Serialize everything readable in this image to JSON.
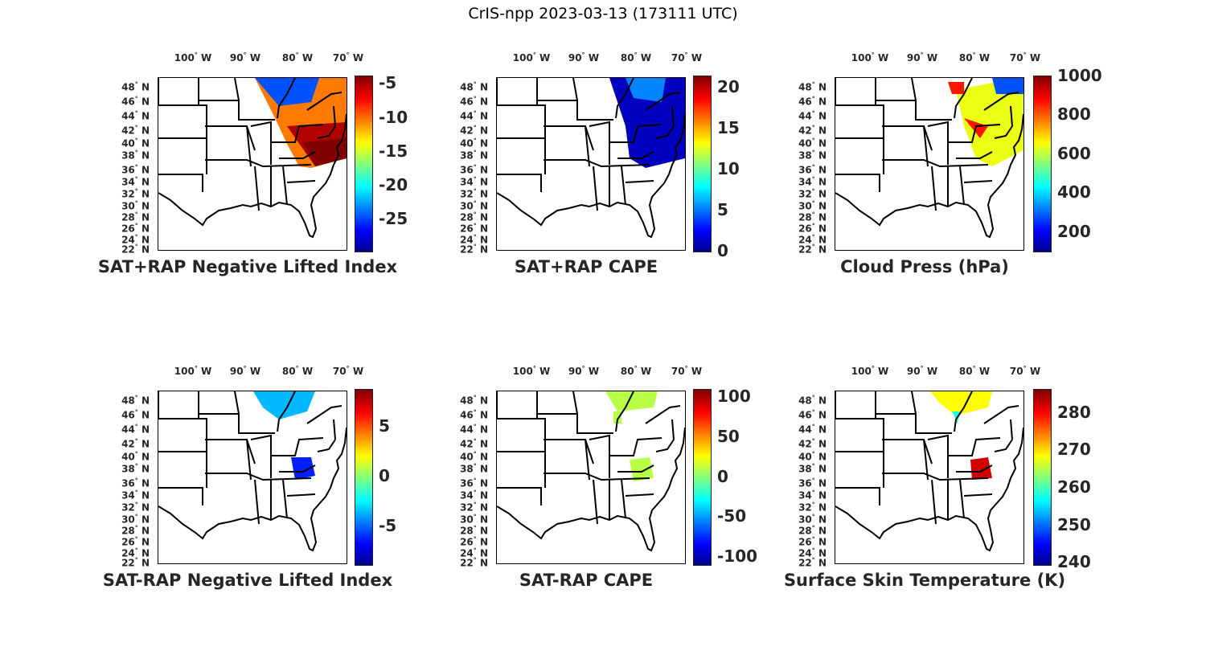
{
  "title": "CrIS-npp 2023-03-13 (173111 UTC)",
  "lat_labels": [
    "48",
    "46",
    "44",
    "42",
    "40",
    "38",
    "36",
    "34",
    "32",
    "30",
    "28",
    "26",
    "24",
    "22"
  ],
  "lat_suffix": "N",
  "lon_labels": [
    "100",
    "90",
    "80",
    "70"
  ],
  "lon_suffix": "W",
  "colormap": "jet",
  "panels": [
    {
      "title": "SAT+RAP Negative Lifted Index",
      "clim": [
        -29.7,
        -3.9
      ],
      "ticks": [
        "-5",
        "-10",
        "-15",
        "-20",
        "-25"
      ],
      "tickvals": [
        -5,
        -10,
        -15,
        -20,
        -25
      ]
    },
    {
      "title": "SAT+RAP CAPE",
      "clim": [
        0,
        21.4
      ],
      "ticks": [
        "20",
        "15",
        "10",
        "5",
        "0"
      ],
      "tickvals": [
        20,
        15,
        10,
        5,
        0
      ]
    },
    {
      "title": "Cloud Press (hPa)",
      "clim": [
        100,
        1000
      ],
      "ticks": [
        "1000",
        "800",
        "600",
        "400",
        "200"
      ],
      "tickvals": [
        1000,
        800,
        600,
        400,
        200
      ]
    },
    {
      "title": "SAT-RAP Negative Lifted Index",
      "clim": [
        -8.9,
        8.7
      ],
      "ticks": [
        "5",
        "0",
        "-5"
      ],
      "tickvals": [
        5,
        0,
        -5
      ]
    },
    {
      "title": "SAT-RAP CAPE",
      "clim": [
        -110,
        109
      ],
      "ticks": [
        "100",
        "50",
        "0",
        "-50",
        "-100"
      ],
      "tickvals": [
        100,
        50,
        0,
        -50,
        -100
      ]
    },
    {
      "title": "Surface Skin Temperature (K)",
      "clim": [
        239.4,
        286.2
      ],
      "ticks": [
        "280",
        "270",
        "260",
        "250",
        "240"
      ],
      "tickvals": [
        280,
        270,
        260,
        250,
        240
      ]
    }
  ]
}
